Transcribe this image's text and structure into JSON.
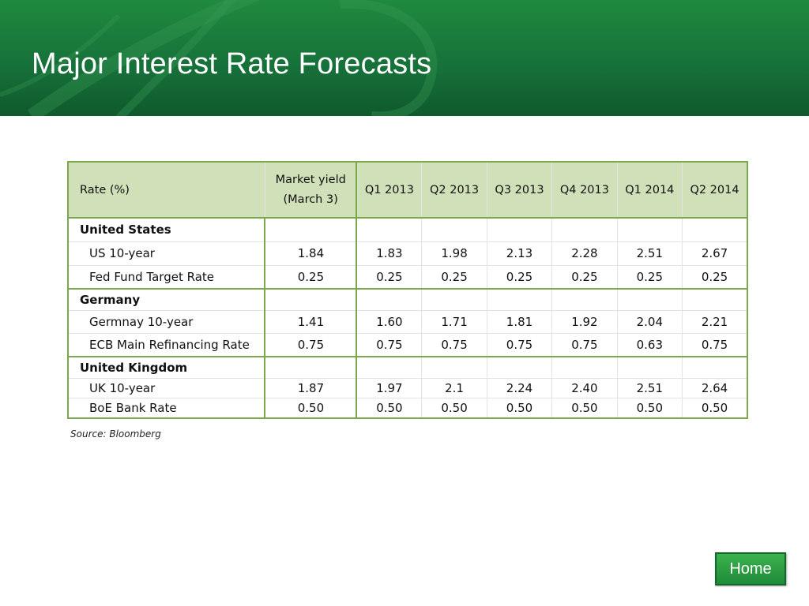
{
  "slide": {
    "title": "Major Interest Rate Forecasts",
    "source": "Source: Bloomberg",
    "home_label": "Home"
  },
  "table": {
    "headers": [
      "Rate (%)",
      "Market yield (March 3)",
      "Q1 2013",
      "Q2 2013",
      "Q3 2013",
      "Q4 2013",
      "Q1 2014",
      "Q2 2014"
    ],
    "groups": [
      {
        "name": "United States",
        "rows": [
          {
            "label": "US 10-year",
            "values": [
              "1.84",
              "1.83",
              "1.98",
              "2.13",
              "2.28",
              "2.51",
              "2.67"
            ]
          },
          {
            "label": "Fed Fund Target Rate",
            "values": [
              "0.25",
              "0.25",
              "0.25",
              "0.25",
              "0.25",
              "0.25",
              "0.25"
            ]
          }
        ]
      },
      {
        "name": "Germany",
        "rows": [
          {
            "label": "Germnay 10-year",
            "values": [
              "1.41",
              "1.60",
              "1.71",
              "1.81",
              "1.92",
              "2.04",
              "2.21"
            ]
          },
          {
            "label": "ECB Main Refinancing Rate",
            "values": [
              "0.75",
              "0.75",
              "0.75",
              "0.75",
              "0.75",
              "0.63",
              "0.75"
            ]
          }
        ]
      },
      {
        "name": "United Kingdom",
        "rows": [
          {
            "label": "UK 10-year",
            "values": [
              "1.87",
              "1.97",
              "2.1",
              "2.24",
              "2.40",
              "2.51",
              "2.64"
            ]
          },
          {
            "label": "BoE Bank Rate",
            "values": [
              "0.50",
              "0.50",
              "0.50",
              "0.50",
              "0.50",
              "0.50",
              "0.50"
            ]
          }
        ]
      }
    ]
  },
  "colors": {
    "header_green": "#17723a",
    "table_header_bg": "#d0e0b8",
    "table_border_green": "#7aa84a"
  }
}
